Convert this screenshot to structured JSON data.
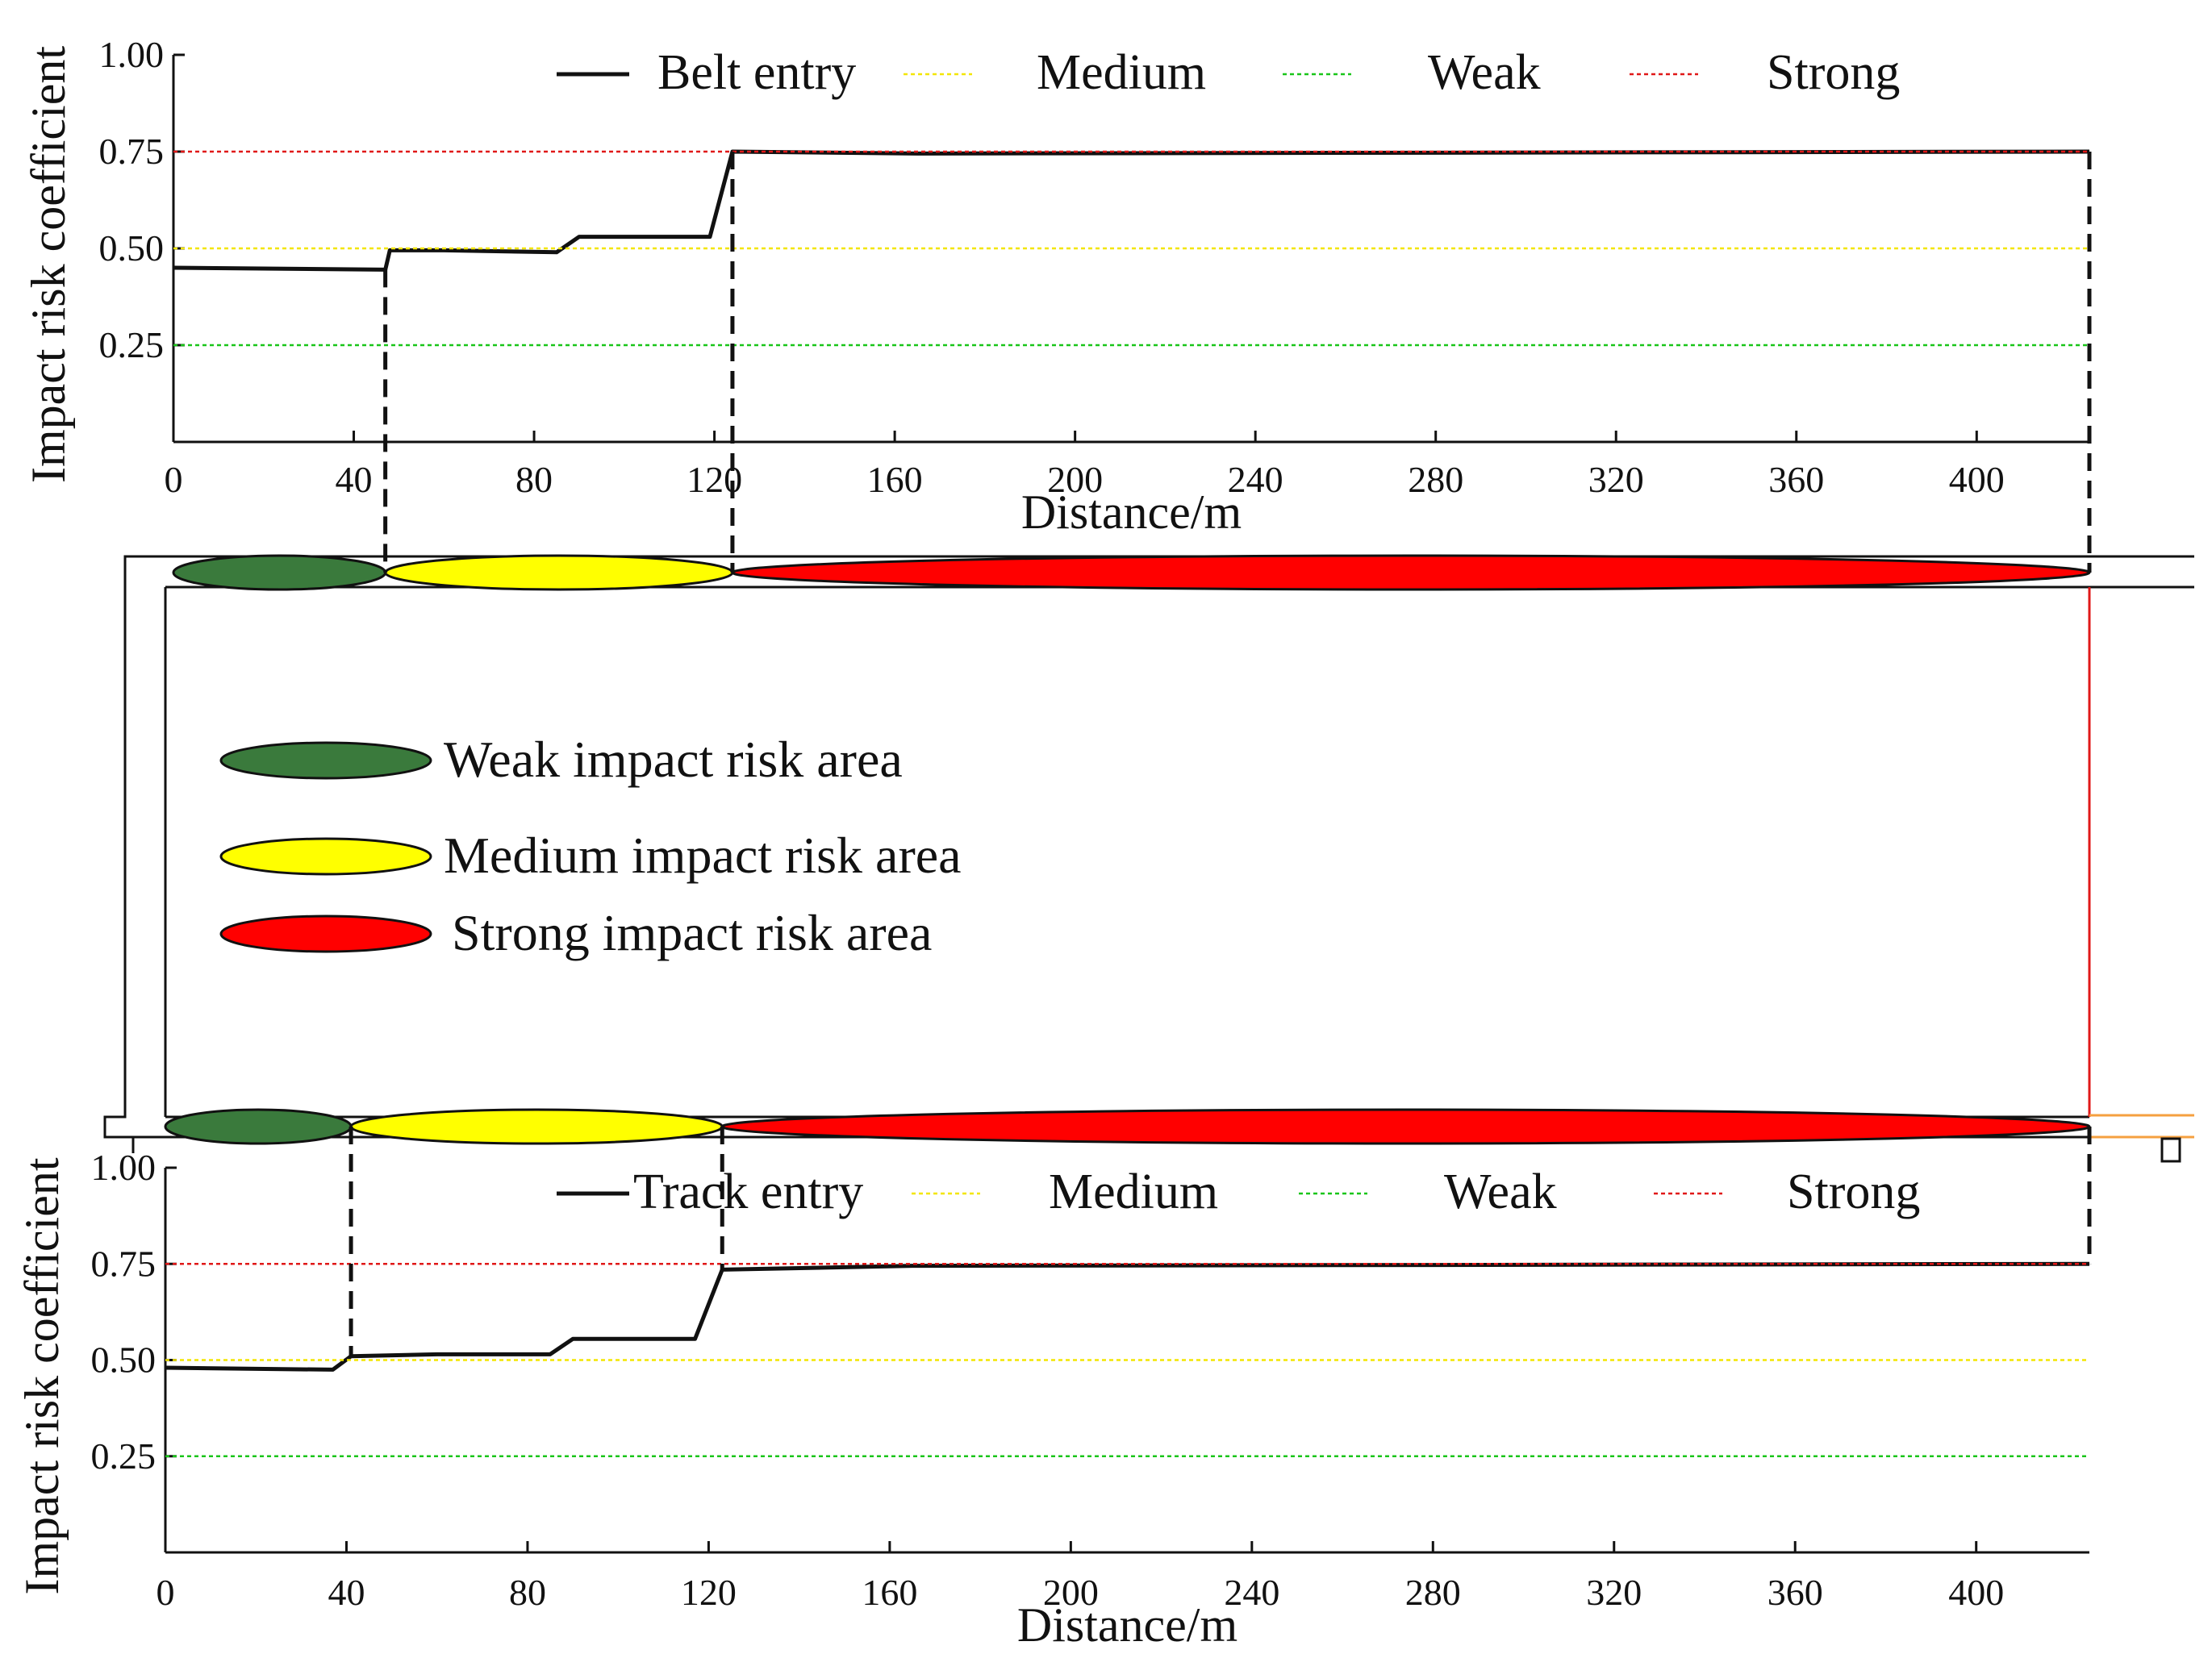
{
  "colors": {
    "belt": "#111111",
    "medium": "#f3e600",
    "weak": "#19c519",
    "strong": "#e01818",
    "weak_zone": "#3a7a3c",
    "medium_zone": "#ffff00",
    "strong_zone": "#ff0000",
    "tunnel_outline": "#111111",
    "tunnel_edge_accent": "#f5a040"
  },
  "chart_data": [
    {
      "type": "line",
      "id": "belt",
      "title": "",
      "xlabel": "Distance/m",
      "ylabel": "Impact risk coefficient",
      "xlim": [
        0,
        425
      ],
      "ylim": [
        0,
        1
      ],
      "xticks": [
        "0",
        "40",
        "80",
        "120",
        "160",
        "200",
        "240",
        "280",
        "320",
        "360",
        "400"
      ],
      "yticks": [
        "0.25",
        "0.50",
        "0.75",
        "1.00"
      ],
      "series": [
        {
          "name": "Belt entry",
          "style": "solid",
          "x": [
            0,
            47,
            48,
            60,
            85,
            90,
            119,
            124,
            165,
            425
          ],
          "y": [
            0.45,
            0.445,
            0.495,
            0.495,
            0.49,
            0.53,
            0.53,
            0.75,
            0.745,
            0.75
          ]
        },
        {
          "name": "Medium",
          "style": "dotted",
          "x": [
            0,
            425
          ],
          "y": [
            0.5,
            0.5
          ]
        },
        {
          "name": "Weak",
          "style": "dotted",
          "x": [
            0,
            425
          ],
          "y": [
            0.25,
            0.25
          ]
        },
        {
          "name": "Strong",
          "style": "dotted",
          "x": [
            0,
            425
          ],
          "y": [
            0.75,
            0.75
          ]
        }
      ],
      "boundaries_m": [
        47,
        124,
        425
      ],
      "legend_position": "top"
    },
    {
      "type": "line",
      "id": "track",
      "title": "",
      "xlabel": "Distance/m",
      "ylabel": "Impact risk coefficient",
      "xlim": [
        0,
        425
      ],
      "ylim": [
        0,
        1
      ],
      "xticks": [
        "0",
        "40",
        "80",
        "120",
        "160",
        "200",
        "240",
        "280",
        "320",
        "360",
        "400"
      ],
      "yticks": [
        "0.25",
        "0.50",
        "0.75",
        "1.00"
      ],
      "series": [
        {
          "name": "Track entry",
          "style": "solid",
          "x": [
            0,
            37,
            41,
            60,
            85,
            90,
            117,
            123,
            165,
            425
          ],
          "y": [
            0.48,
            0.475,
            0.51,
            0.515,
            0.515,
            0.555,
            0.555,
            0.735,
            0.745,
            0.75
          ]
        },
        {
          "name": "Medium",
          "style": "dotted",
          "x": [
            0,
            425
          ],
          "y": [
            0.5,
            0.5
          ]
        },
        {
          "name": "Weak",
          "style": "dotted",
          "x": [
            0,
            425
          ],
          "y": [
            0.25,
            0.25
          ]
        },
        {
          "name": "Strong",
          "style": "dotted",
          "x": [
            0,
            425
          ],
          "y": [
            0.75,
            0.75
          ]
        }
      ],
      "boundaries_m": [
        41,
        123,
        425
      ],
      "legend_position": "top"
    }
  ],
  "zones": {
    "belt": [
      {
        "level": "weak",
        "from_m": 0,
        "to_m": 47
      },
      {
        "level": "medium",
        "from_m": 47,
        "to_m": 124
      },
      {
        "level": "strong",
        "from_m": 124,
        "to_m": 425
      }
    ],
    "track": [
      {
        "level": "weak",
        "from_m": 0,
        "to_m": 41
      },
      {
        "level": "medium",
        "from_m": 41,
        "to_m": 123
      },
      {
        "level": "strong",
        "from_m": 123,
        "to_m": 425
      }
    ]
  },
  "zone_legend": {
    "weak": "Weak impact risk area",
    "medium": "Medium impact risk area",
    "strong": "Strong impact risk area"
  }
}
